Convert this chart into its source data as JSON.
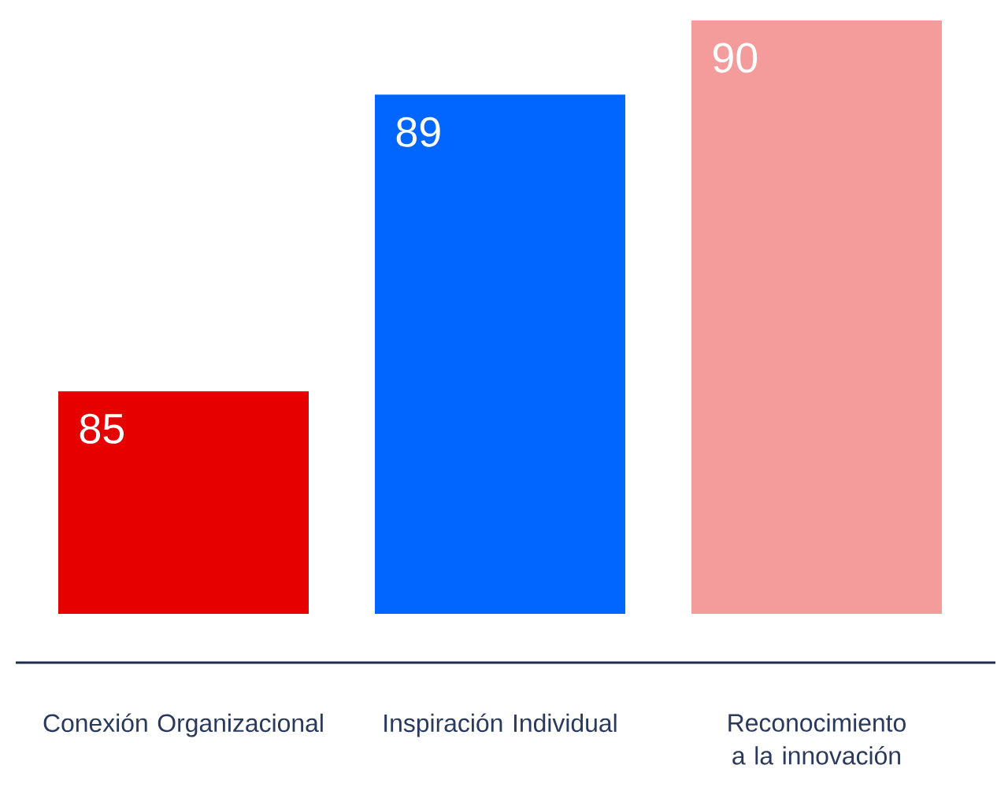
{
  "chart_data": {
    "type": "bar",
    "categories": [
      "Conexión Organizacional",
      "Inspiración Individual",
      "Reconocimiento a la innovación"
    ],
    "values": [
      85,
      89,
      90
    ],
    "colors": [
      "#e60000",
      "#0066ff",
      "#f49b9b"
    ],
    "ylim": [
      82,
      90
    ],
    "data_labels": true
  }
}
